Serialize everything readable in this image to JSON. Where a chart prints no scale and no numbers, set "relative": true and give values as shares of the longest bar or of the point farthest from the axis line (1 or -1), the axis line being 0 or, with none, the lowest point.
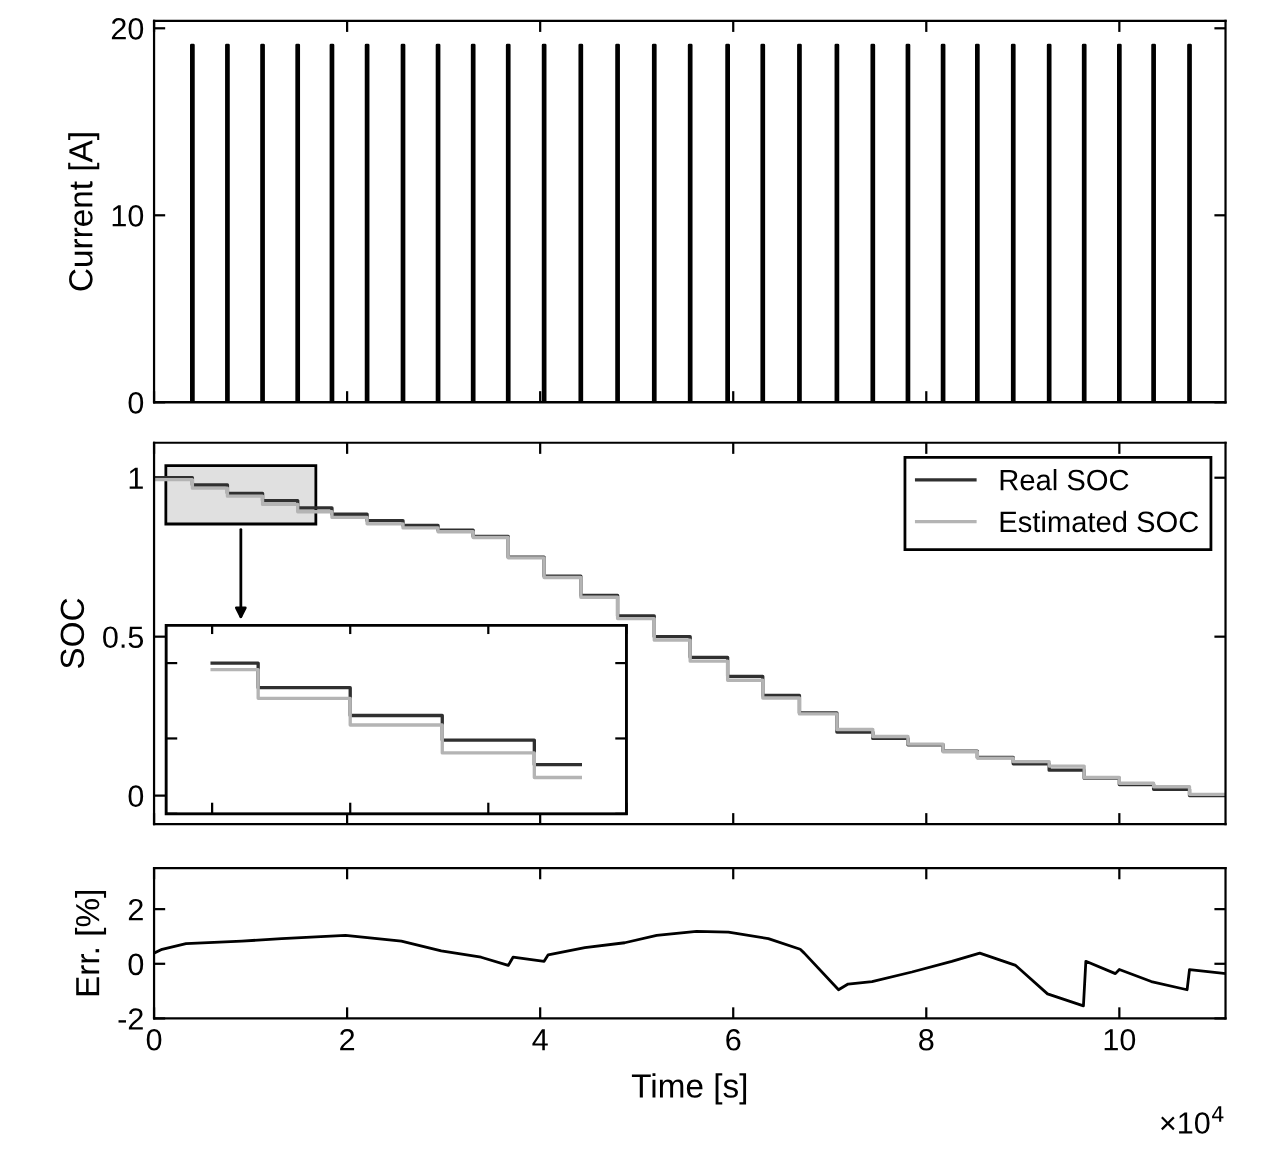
{
  "chart_data": [
    {
      "type": "line",
      "ylabel": "Current [A]",
      "tick_labels": "y",
      "xlim": [
        0,
        11.1
      ],
      "xticks": [
        0,
        2,
        4,
        6,
        8,
        10
      ],
      "ylim": [
        0,
        20.4
      ],
      "yticks": [
        0,
        10,
        20
      ],
      "series": [
        {
          "color": "#000000",
          "x": [
            0,
            0.387,
            0.387,
            0.407,
            0.407,
            0.75,
            0.75,
            0.77,
            0.77,
            1.114,
            1.114,
            1.134,
            1.134,
            1.478,
            1.478,
            1.498,
            1.498,
            1.833,
            1.833,
            1.853,
            1.853,
            2.197,
            2.197,
            2.217,
            2.217,
            2.569,
            2.569,
            2.589,
            2.589,
            2.932,
            2.932,
            2.952,
            2.952,
            3.296,
            3.296,
            3.316,
            3.316,
            3.659,
            3.659,
            3.679,
            3.679,
            4.031,
            4.031,
            4.051,
            4.051,
            4.411,
            4.411,
            4.431,
            4.431,
            4.792,
            4.792,
            4.812,
            4.812,
            5.172,
            5.172,
            5.192,
            5.192,
            5.544,
            5.544,
            5.564,
            5.564,
            5.932,
            5.932,
            5.952,
            5.952,
            6.296,
            6.296,
            6.316,
            6.316,
            6.676,
            6.676,
            6.696,
            6.696,
            7.064,
            7.064,
            7.084,
            7.084,
            7.436,
            7.436,
            7.456,
            7.456,
            7.8,
            7.8,
            7.82,
            7.82,
            8.164,
            8.164,
            8.184,
            8.184,
            8.519,
            8.519,
            8.539,
            8.539,
            8.891,
            8.891,
            8.911,
            8.911,
            9.263,
            9.263,
            9.283,
            9.283,
            9.626,
            9.626,
            9.646,
            9.646,
            9.99,
            9.99,
            10.01,
            10.01,
            10.345,
            10.345,
            10.365,
            10.365,
            10.717,
            10.717,
            10.737,
            10.737,
            11.1
          ],
          "values": [
            0,
            0,
            19.1,
            19.1,
            0,
            0,
            19.1,
            19.1,
            0,
            0,
            19.1,
            19.1,
            0,
            0,
            19.1,
            19.1,
            0,
            0,
            19.1,
            19.1,
            0,
            0,
            19.1,
            19.1,
            0,
            0,
            19.1,
            19.1,
            0,
            0,
            19.1,
            19.1,
            0,
            0,
            19.1,
            19.1,
            0,
            0,
            19.1,
            19.1,
            0,
            0,
            19.1,
            19.1,
            0,
            0,
            19.1,
            19.1,
            0,
            0,
            19.1,
            19.1,
            0,
            0,
            19.1,
            19.1,
            0,
            0,
            19.1,
            19.1,
            0,
            0,
            19.1,
            19.1,
            0,
            0,
            19.1,
            19.1,
            0,
            0,
            19.1,
            19.1,
            0,
            0,
            19.1,
            19.1,
            0,
            0,
            19.1,
            19.1,
            0,
            0,
            19.1,
            19.1,
            0,
            0,
            19.1,
            19.1,
            0,
            0,
            19.1,
            19.1,
            0,
            0,
            19.1,
            19.1,
            0,
            0,
            19.1,
            19.1,
            0,
            0,
            19.1,
            19.1,
            0,
            0,
            19.1,
            19.1,
            0,
            0,
            19.1,
            19.1,
            0,
            0,
            19.1,
            19.1,
            0,
            0
          ]
        }
      ]
    },
    {
      "type": "step",
      "ylabel": "SOC",
      "tick_labels": "y",
      "legend": "top right",
      "xlim": [
        0,
        11.1
      ],
      "xticks": [
        0,
        2,
        4,
        6,
        8,
        10
      ],
      "ylim": [
        -0.09,
        1.11
      ],
      "yticks": [
        0,
        0.5,
        1
      ],
      "series": [
        {
          "name": "Real SOC",
          "color": "#303030",
          "x": [
            0,
            0.397,
            0.76,
            1.124,
            1.488,
            1.843,
            2.207,
            2.579,
            2.942,
            3.306,
            3.669,
            4.041,
            4.421,
            4.802,
            5.182,
            5.554,
            5.942,
            6.306,
            6.686,
            7.074,
            7.446,
            7.81,
            8.174,
            8.529,
            8.901,
            9.273,
            9.636,
            10.0,
            10.355,
            10.727,
            11.1
          ],
          "values": [
            1.0,
            0.977,
            0.951,
            0.928,
            0.905,
            0.885,
            0.865,
            0.85,
            0.835,
            0.815,
            0.75,
            0.69,
            0.63,
            0.565,
            0.5,
            0.435,
            0.375,
            0.315,
            0.26,
            0.2,
            0.18,
            0.16,
            0.14,
            0.12,
            0.1,
            0.08,
            0.055,
            0.035,
            0.02,
            0.0,
            0.0
          ]
        },
        {
          "name": "Estimated SOC",
          "color": "#b4b4b4",
          "x": [
            0,
            0.397,
            0.76,
            1.124,
            1.488,
            1.843,
            2.207,
            2.579,
            2.942,
            3.306,
            3.669,
            4.041,
            4.421,
            4.802,
            5.182,
            5.554,
            5.942,
            6.306,
            6.686,
            7.074,
            7.446,
            7.81,
            8.174,
            8.529,
            8.901,
            9.273,
            9.636,
            10.0,
            10.355,
            10.727,
            11.1
          ],
          "values": [
            0.994,
            0.967,
            0.942,
            0.916,
            0.893,
            0.875,
            0.855,
            0.842,
            0.83,
            0.812,
            0.748,
            0.686,
            0.624,
            0.557,
            0.489,
            0.423,
            0.363,
            0.307,
            0.257,
            0.208,
            0.186,
            0.162,
            0.138,
            0.118,
            0.107,
            0.093,
            0.057,
            0.039,
            0.028,
            0.004,
            0.004
          ]
        }
      ]
    },
    {
      "type": "line",
      "ylabel": "Err. [%]",
      "xlabel": "Time [s]",
      "annotations": [
        "×10$^{4}$"
      ],
      "xlim": [
        0,
        11.1
      ],
      "xticks": [
        0,
        2,
        4,
        6,
        8,
        10
      ],
      "ylim": [
        -2,
        3.5
      ],
      "yticks": [
        -2,
        0,
        2
      ],
      "series": [
        {
          "color": "#000000",
          "x": [
            0,
            0.083,
            0.331,
            0.909,
            1.322,
            1.983,
            2.562,
            2.975,
            3.388,
            3.669,
            3.719,
            4.041,
            4.083,
            4.463,
            4.876,
            5.207,
            5.62,
            5.95,
            6.364,
            6.694,
            6.736,
            7.091,
            7.19,
            7.438,
            7.851,
            8.264,
            8.554,
            8.926,
            9.256,
            9.628,
            9.653,
            9.959,
            10.0,
            10.331,
            10.702,
            10.727,
            11.1
          ],
          "values": [
            0.39,
            0.53,
            0.74,
            0.83,
            0.92,
            1.04,
            0.83,
            0.47,
            0.24,
            -0.06,
            0.24,
            0.09,
            0.33,
            0.59,
            0.77,
            1.04,
            1.19,
            1.16,
            0.92,
            0.53,
            0.39,
            -0.95,
            -0.74,
            -0.65,
            -0.3,
            0.09,
            0.39,
            -0.06,
            -1.1,
            -1.54,
            0.09,
            -0.36,
            -0.21,
            -0.65,
            -0.95,
            -0.21,
            -0.36
          ]
        }
      ]
    },
    {
      "type": "step",
      "tick_labels": false,
      "relative": true,
      "categories": [
        null,
        null,
        null,
        null,
        null
      ],
      "series": [
        {
          "color": "#303030",
          "values": [
            1.0,
            0.837,
            0.652,
            0.489,
            0.326
          ]
        },
        {
          "color": "#b4b4b4",
          "values": [
            0.957,
            0.766,
            0.589,
            0.404,
            0.241
          ]
        }
      ]
    }
  ]
}
